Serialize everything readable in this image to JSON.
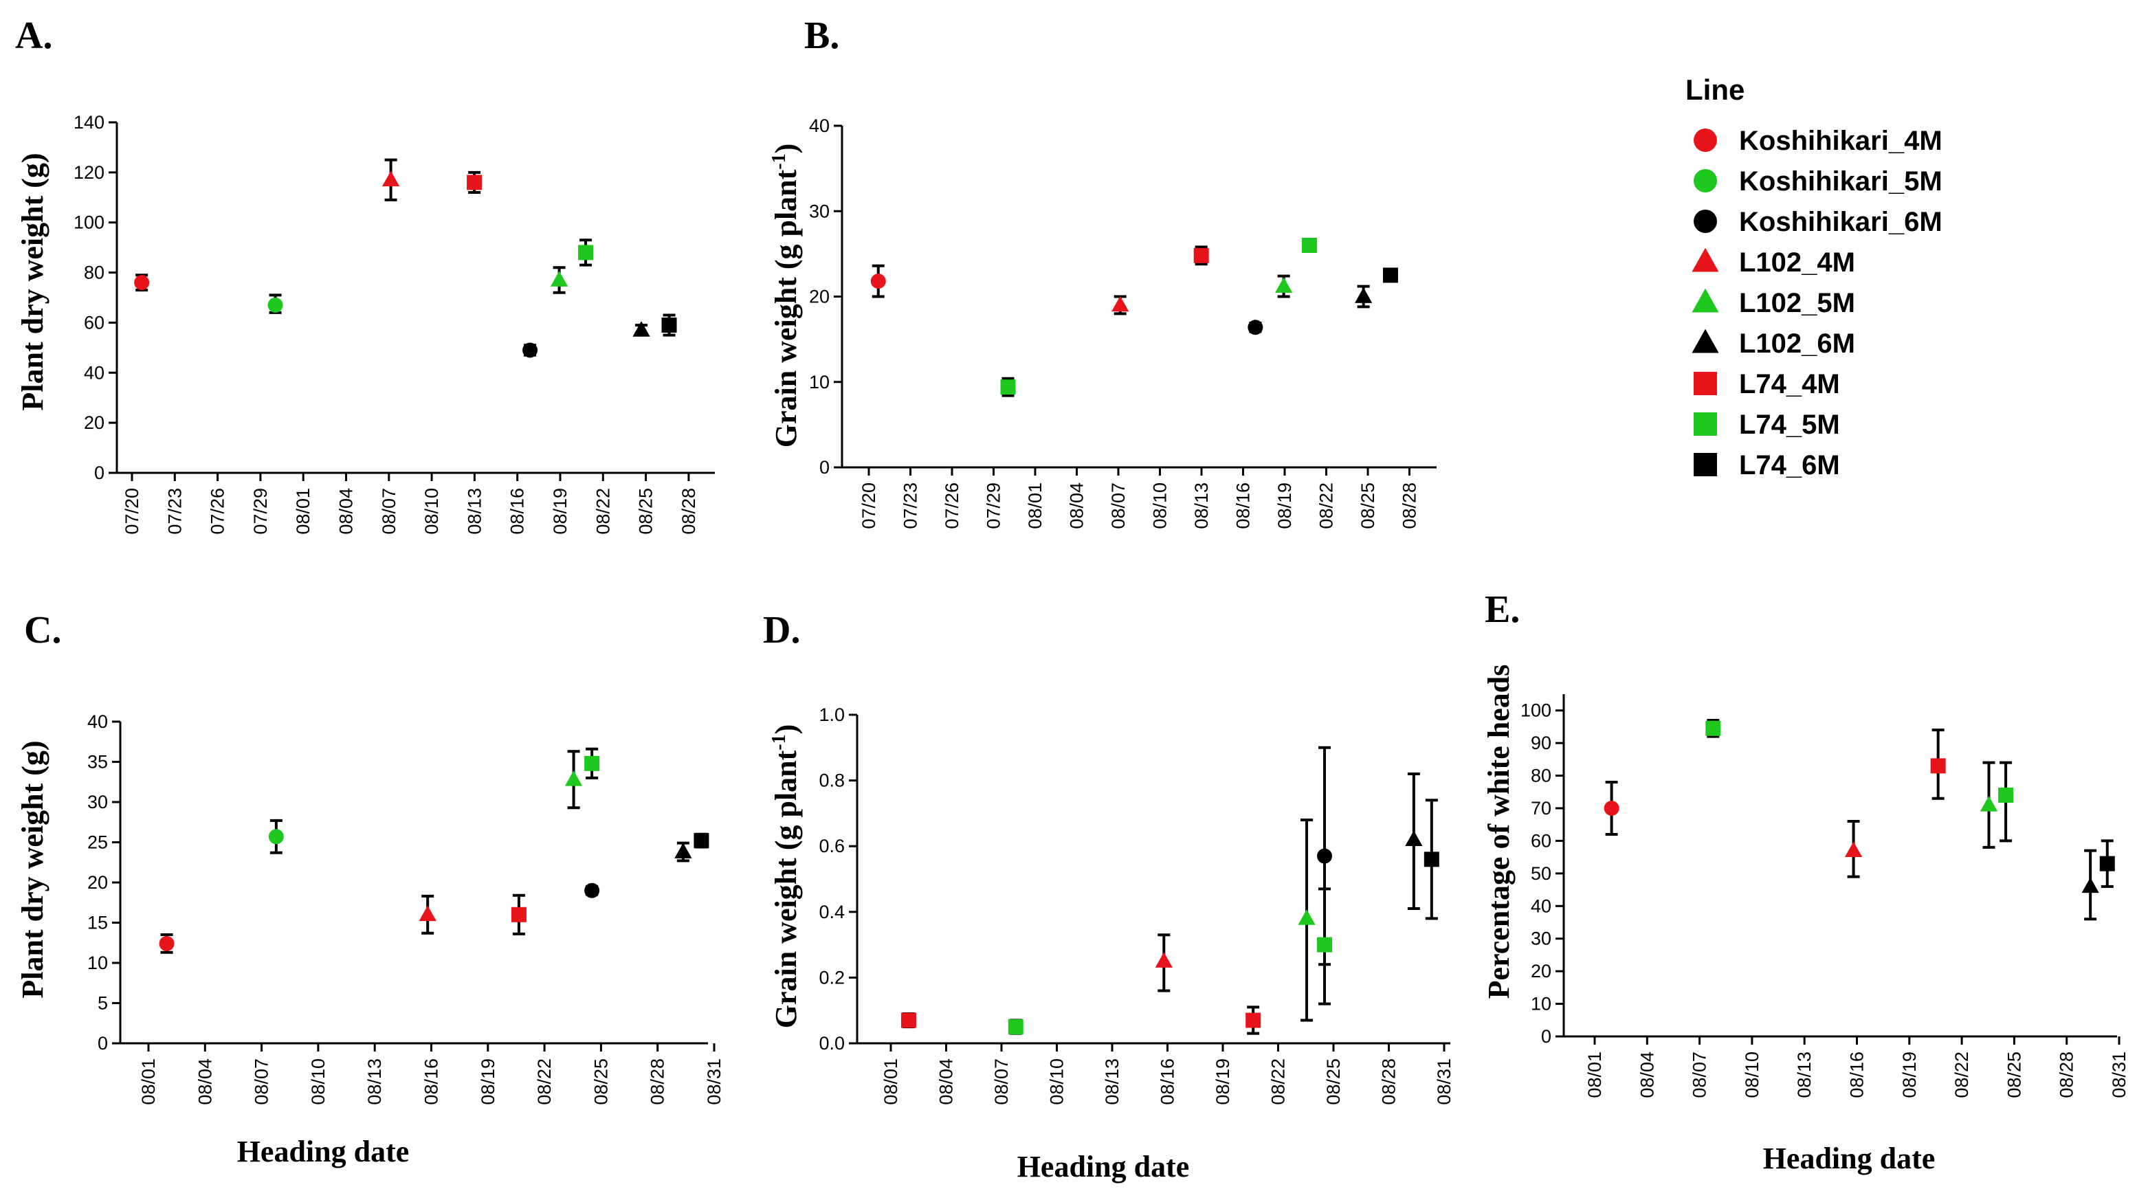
{
  "colors": {
    "4M": "#e8141b",
    "5M": "#1ec81e",
    "6M": "#000000"
  },
  "legend": {
    "title": "Line",
    "items": [
      {
        "label": "Koshihikari_4M",
        "shape": "circle",
        "color_key": "4M"
      },
      {
        "label": "Koshihikari_5M",
        "shape": "circle",
        "color_key": "5M"
      },
      {
        "label": "Koshihikari_6M",
        "shape": "circle",
        "color_key": "6M"
      },
      {
        "label": "L102_4M",
        "shape": "triangle",
        "color_key": "4M"
      },
      {
        "label": "L102_5M",
        "shape": "triangle",
        "color_key": "5M"
      },
      {
        "label": "L102_6M",
        "shape": "triangle",
        "color_key": "6M"
      },
      {
        "label": "L74_4M",
        "shape": "square",
        "color_key": "4M"
      },
      {
        "label": "L74_5M",
        "shape": "square",
        "color_key": "5M"
      },
      {
        "label": "L74_6M",
        "shape": "square",
        "color_key": "6M"
      }
    ]
  },
  "chart_data": [
    {
      "id": "A",
      "panel_label": "A.",
      "type": "scatter",
      "ylabel": "Plant dry weight (g)",
      "xlabel": "",
      "xlim": [
        0,
        40
      ],
      "ylim": [
        0,
        140
      ],
      "yticks": [
        0,
        20,
        40,
        60,
        80,
        100,
        120,
        140
      ],
      "xtick_labels": [
        "07/20",
        "07/23",
        "07/26",
        "07/29",
        "08/01",
        "08/04",
        "08/07",
        "08/10",
        "08/13",
        "08/16",
        "08/19",
        "08/22",
        "08/25",
        "08/28"
      ],
      "points": [
        {
          "series": "Koshihikari_4M",
          "x": 0.7,
          "y": 76,
          "lo": 73,
          "hi": 79
        },
        {
          "series": "Koshihikari_5M",
          "x": 10.3,
          "y": 67,
          "lo": 64,
          "hi": 71
        },
        {
          "series": "L102_4M",
          "x": 18.6,
          "y": 117,
          "lo": 109,
          "hi": 125
        },
        {
          "series": "L74_4M",
          "x": 24.6,
          "y": 116,
          "lo": 112,
          "hi": 120
        },
        {
          "series": "Koshihikari_6M",
          "x": 28.6,
          "y": 49,
          "lo": 47,
          "hi": 51
        },
        {
          "series": "L102_5M",
          "x": 30.7,
          "y": 77,
          "lo": 72,
          "hi": 82
        },
        {
          "series": "L74_5M",
          "x": 32.6,
          "y": 88,
          "lo": 83,
          "hi": 93
        },
        {
          "series": "L102_6M",
          "x": 36.6,
          "y": 57,
          "lo": 55,
          "hi": 59
        },
        {
          "series": "L74_6M",
          "x": 38.6,
          "y": 59,
          "lo": 55,
          "hi": 63
        }
      ]
    },
    {
      "id": "B",
      "panel_label": "B.",
      "type": "scatter",
      "ylabel": "Grain weight (g plant",
      "ylabel_sup": "-1",
      "ylabel_close": ")",
      "xlabel": "",
      "xlim": [
        0,
        40
      ],
      "ylim": [
        0,
        40
      ],
      "yticks": [
        0,
        10,
        20,
        30,
        40
      ],
      "xtick_labels": [
        "07/20",
        "07/23",
        "07/26",
        "07/29",
        "08/01",
        "08/04",
        "08/07",
        "08/10",
        "08/13",
        "08/16",
        "08/19",
        "08/22",
        "08/25",
        "08/28"
      ],
      "points": [
        {
          "series": "Koshihikari_4M",
          "x": 0.7,
          "y": 21.8,
          "lo": 20.0,
          "hi": 23.6
        },
        {
          "series": "L74_5M",
          "x": 10.3,
          "y": 9.4,
          "lo": 8.4,
          "hi": 10.4
        },
        {
          "series": "L102_4M",
          "x": 18.6,
          "y": 19.0,
          "lo": 18.0,
          "hi": 20.0
        },
        {
          "series": "L74_4M",
          "x": 24.6,
          "y": 24.8,
          "lo": 23.8,
          "hi": 25.8
        },
        {
          "series": "Koshihikari_6M",
          "x": 28.6,
          "y": 16.4,
          "lo": 15.9,
          "hi": 16.9
        },
        {
          "series": "L102_5M",
          "x": 30.7,
          "y": 21.2,
          "lo": 20.0,
          "hi": 22.4
        },
        {
          "series": "L74_5M",
          "x": 32.6,
          "y": 26.0,
          "lo": 25.3,
          "hi": 26.7
        },
        {
          "series": "L102_6M",
          "x": 36.6,
          "y": 20.0,
          "lo": 18.8,
          "hi": 21.2
        },
        {
          "series": "L74_6M",
          "x": 38.6,
          "y": 22.5,
          "lo": 22.0,
          "hi": 23.0
        }
      ]
    },
    {
      "id": "C",
      "panel_label": "C.",
      "type": "scatter",
      "ylabel": "Plant dry weight (g)",
      "xlabel": "Heading date",
      "xlim": [
        0,
        31
      ],
      "ylim": [
        0,
        40
      ],
      "yticks": [
        0,
        5,
        10,
        15,
        20,
        25,
        30,
        35,
        40
      ],
      "xtick_labels": [
        "08/01",
        "08/04",
        "08/07",
        "08/10",
        "08/13",
        "08/16",
        "08/19",
        "08/22",
        "08/25",
        "08/28",
        "08/31"
      ],
      "points": [
        {
          "series": "Koshihikari_4M",
          "x": 1,
          "y": 12.4,
          "lo": 11.3,
          "hi": 13.5
        },
        {
          "series": "Koshihikari_5M",
          "x": 7,
          "y": 25.7,
          "lo": 23.7,
          "hi": 27.7
        },
        {
          "series": "L102_4M",
          "x": 15.3,
          "y": 16.0,
          "lo": 13.7,
          "hi": 18.3
        },
        {
          "series": "L74_4M",
          "x": 20.3,
          "y": 16.0,
          "lo": 13.6,
          "hi": 18.4
        },
        {
          "series": "L102_5M",
          "x": 23.3,
          "y": 32.8,
          "lo": 29.3,
          "hi": 36.3
        },
        {
          "series": "Koshihikari_6M",
          "x": 24.3,
          "y": 19.0,
          "lo": 18.5,
          "hi": 19.5
        },
        {
          "series": "L74_5M",
          "x": 24.3,
          "y": 34.8,
          "lo": 33.0,
          "hi": 36.6
        },
        {
          "series": "L102_6M",
          "x": 29.3,
          "y": 23.8,
          "lo": 22.7,
          "hi": 24.9
        },
        {
          "series": "L74_6M",
          "x": 30.3,
          "y": 25.2,
          "lo": 24.4,
          "hi": 26.0
        }
      ]
    },
    {
      "id": "D",
      "panel_label": "D.",
      "type": "scatter",
      "ylabel": "Grain weight (g plant",
      "ylabel_sup": "-1",
      "ylabel_close": ")",
      "xlabel": "Heading date",
      "xlim": [
        0,
        31
      ],
      "ylim": [
        0,
        1.0
      ],
      "yticks": [
        0.0,
        0.2,
        0.4,
        0.6,
        0.8,
        1.0
      ],
      "ytick_labels": [
        "0.0",
        "0.2",
        "0.4",
        "0.6",
        "0.8",
        "1.0"
      ],
      "xtick_labels": [
        "08/01",
        "08/04",
        "08/07",
        "08/10",
        "08/13",
        "08/16",
        "08/19",
        "08/22",
        "08/25",
        "08/28",
        "08/31"
      ],
      "points": [
        {
          "series": "L74_4M",
          "x": 1,
          "y": 0.07,
          "lo": 0.05,
          "hi": 0.09
        },
        {
          "series": "L74_5M",
          "x": 7,
          "y": 0.05,
          "lo": 0.03,
          "hi": 0.07
        },
        {
          "series": "L102_4M",
          "x": 15.3,
          "y": 0.25,
          "lo": 0.16,
          "hi": 0.33
        },
        {
          "series": "L74_4M",
          "x": 20.3,
          "y": 0.07,
          "lo": 0.03,
          "hi": 0.11
        },
        {
          "series": "L102_5M",
          "x": 23.3,
          "y": 0.38,
          "lo": 0.07,
          "hi": 0.68
        },
        {
          "series": "Koshihikari_6M",
          "x": 24.3,
          "y": 0.57,
          "lo": 0.24,
          "hi": 0.9
        },
        {
          "series": "L74_5M",
          "x": 24.3,
          "y": 0.3,
          "lo": 0.12,
          "hi": 0.47
        },
        {
          "series": "L102_6M",
          "x": 29.3,
          "y": 0.62,
          "lo": 0.41,
          "hi": 0.82
        },
        {
          "series": "L74_6M",
          "x": 30.3,
          "y": 0.56,
          "lo": 0.38,
          "hi": 0.74
        }
      ]
    },
    {
      "id": "E",
      "panel_label": "E.",
      "type": "scatter",
      "ylabel": "Percentage of white heads",
      "xlabel": "Heading date",
      "xlim": [
        0,
        31
      ],
      "ylim": [
        0,
        105
      ],
      "yticks": [
        0,
        10,
        20,
        30,
        40,
        50,
        60,
        70,
        80,
        90,
        100
      ],
      "xtick_labels": [
        "08/01",
        "08/04",
        "08/07",
        "08/10",
        "08/13",
        "08/16",
        "08/19",
        "08/22",
        "08/25",
        "08/28",
        "08/31"
      ],
      "points": [
        {
          "series": "Koshihikari_4M",
          "x": 1,
          "y": 70,
          "lo": 62,
          "hi": 78
        },
        {
          "series": "L74_5M",
          "x": 7,
          "y": 94.5,
          "lo": 92,
          "hi": 97
        },
        {
          "series": "L102_4M",
          "x": 15.3,
          "y": 57,
          "lo": 49,
          "hi": 66
        },
        {
          "series": "L74_4M",
          "x": 20.3,
          "y": 83,
          "lo": 73,
          "hi": 94
        },
        {
          "series": "L102_5M",
          "x": 23.3,
          "y": 71,
          "lo": 58,
          "hi": 84
        },
        {
          "series": "L74_5M",
          "x": 24.3,
          "y": 74,
          "lo": 60,
          "hi": 84
        },
        {
          "series": "L102_6M",
          "x": 29.3,
          "y": 46,
          "lo": 36,
          "hi": 57
        },
        {
          "series": "L74_6M",
          "x": 30.3,
          "y": 53,
          "lo": 46,
          "hi": 60
        }
      ]
    }
  ]
}
